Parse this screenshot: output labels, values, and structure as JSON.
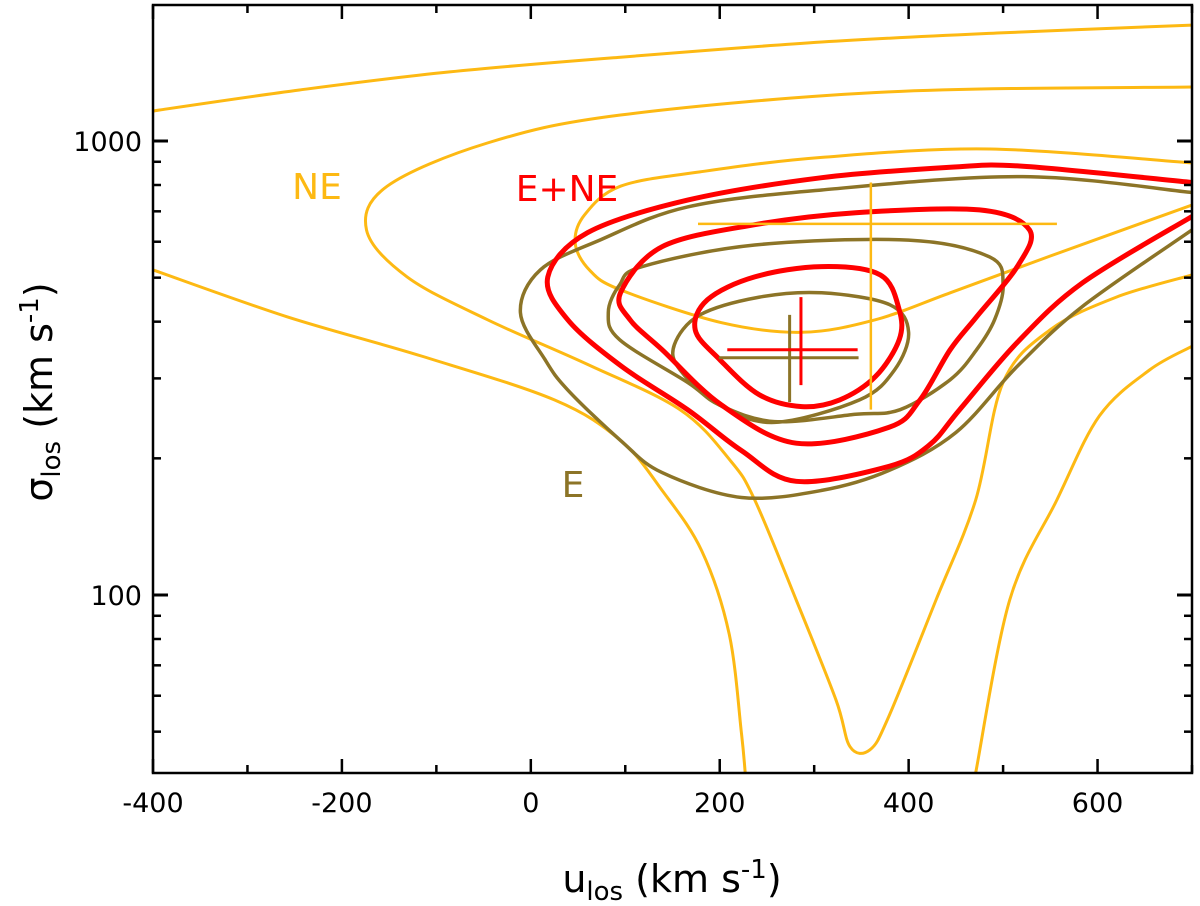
{
  "chart_data": {
    "type": "contour",
    "xlabel": {
      "symbol": "u",
      "subscript": "los",
      "unit": " (km s",
      "unit_sup": "-1",
      "close": ")"
    },
    "ylabel": {
      "symbol": "σ",
      "subscript": "los",
      "unit": " (km s",
      "unit_sup": "-1",
      "close": ")"
    },
    "xlim": [
      -400,
      700
    ],
    "ylim": [
      40.6,
      2000
    ],
    "yscale": "log",
    "x_ticks": [
      -400,
      -200,
      0,
      200,
      400,
      600
    ],
    "x_tick_labels": [
      "-400",
      "-200",
      "0",
      "200",
      "400",
      "600"
    ],
    "y_ticks": [
      100,
      1000
    ],
    "y_tick_labels": [
      "100",
      "1000"
    ],
    "grid": false,
    "series": [
      {
        "name": "NE",
        "color": "#FDB913",
        "contours": [
          {
            "closed": false,
            "points": [
              [
                -400,
                1160
              ],
              [
                -393,
                1170
              ],
              [
                -245,
                1295
              ],
              [
                -86,
                1420
              ],
              [
                95,
                1530
              ],
              [
                308,
                1652
              ],
              [
                497,
                1730
              ],
              [
                700,
                1800
              ]
            ]
          },
          {
            "closed": false,
            "points": [
              [
                700,
                1315
              ],
              [
                379,
                1283
              ],
              [
                95,
                1141
              ],
              [
                -46,
                990
              ],
              [
                -152,
                795
              ],
              [
                -174,
                637
              ],
              [
                -131,
                502
              ],
              [
                -46,
                404
              ],
              [
                60,
                322
              ],
              [
                158,
                256
              ],
              [
                211,
                198
              ],
              [
                237,
                162
              ],
              [
                281,
                97.5
              ],
              [
                323,
                58.8
              ],
              [
                338,
                46.3
              ],
              [
                359,
                45.6
              ],
              [
                379,
                54
              ],
              [
                429,
                97.5
              ],
              [
                471,
                162
              ],
              [
                500,
                294
              ],
              [
                550,
                384
              ],
              [
                620,
                453
              ],
              [
                700,
                507
              ]
            ]
          },
          {
            "closed": false,
            "points": [
              [
                -400,
                520
              ],
              [
                -258,
                410
              ],
              [
                -116,
                336
              ],
              [
                25,
                269
              ],
              [
                95,
                219
              ],
              [
                139,
                170
              ],
              [
                181,
                125
              ],
              [
                210,
                82
              ],
              [
                223,
                49.5
              ],
              [
                227,
                40.6
              ]
            ]
          },
          {
            "closed": false,
            "points": [
              [
                700,
                895
              ],
              [
                486,
                960
              ],
              [
                308,
                920
              ],
              [
                179,
                855
              ],
              [
                95,
                795
              ],
              [
                57,
                688
              ],
              [
                47,
                596
              ],
              [
                62,
                520
              ],
              [
                95,
                470
              ],
              [
                202,
                398
              ],
              [
                287,
                379
              ],
              [
                365,
                404
              ],
              [
                444,
                463
              ],
              [
                550,
                558
              ],
              [
                700,
                723
              ]
            ]
          },
          {
            "closed": false,
            "points": [
              [
                471,
                40.6
              ],
              [
                507,
                97.5
              ],
              [
                557,
                162
              ],
              [
                602,
                248
              ],
              [
                655,
                313
              ],
              [
                700,
                353
              ]
            ]
          }
        ],
        "error_bar": {
          "center": [
            360,
            657
          ],
          "u_range": [
            177,
            557
          ],
          "sigma_range": [
            256,
            810
          ]
        }
      },
      {
        "name": "E",
        "color": "#8C7427",
        "contours": [
          {
            "closed": false,
            "points": [
              [
                700,
                770
              ],
              [
                521,
                835
              ],
              [
                308,
                780
              ],
              [
                166,
                716
              ],
              [
                73,
                605
              ],
              [
                10,
                520
              ],
              [
                -11,
                419
              ],
              [
                15,
                330
              ],
              [
                39,
                283
              ],
              [
                95,
                219
              ],
              [
                139,
                186
              ],
              [
                223,
                164
              ],
              [
                308,
                170
              ],
              [
                379,
                188
              ],
              [
                450,
                228
              ],
              [
                515,
                319
              ],
              [
                584,
                432
              ],
              [
                700,
                637
              ]
            ]
          },
          {
            "closed": true,
            "points": [
              [
                118,
                529
              ],
              [
                237,
                590
              ],
              [
                400,
                605
              ],
              [
                486,
                555
              ],
              [
                500,
                482
              ],
              [
                491,
                404
              ],
              [
                472,
                347
              ],
              [
                444,
                298
              ],
              [
                391,
                256
              ],
              [
                344,
                250
              ],
              [
                258,
                241
              ],
              [
                200,
                262
              ],
              [
                166,
                294
              ],
              [
                94,
                365
              ],
              [
                82,
                419
              ],
              [
                94,
                482
              ]
            ]
          },
          {
            "closed": true,
            "points": [
              [
                308,
                463
              ],
              [
                380,
                436
              ],
              [
                400,
                379
              ],
              [
                385,
                313
              ],
              [
                348,
                269
              ],
              [
                258,
                240
              ],
              [
                200,
                262
              ],
              [
                158,
                313
              ],
              [
                152,
                356
              ],
              [
                179,
                414
              ],
              [
                242,
                453
              ]
            ]
          }
        ],
        "error_bar": {
          "center": [
            274,
            333
          ],
          "u_range": [
            199,
            347
          ],
          "sigma_range": [
            266,
            414
          ]
        }
      },
      {
        "name": "E+NE",
        "color": "#FF0000",
        "contours": [
          {
            "closed": false,
            "points": [
              [
                700,
                810
              ],
              [
                521,
                880
              ],
              [
                444,
                875
              ],
              [
                308,
                830
              ],
              [
                166,
                741
              ],
              [
                60,
                628
              ],
              [
                18,
                502
              ],
              [
                39,
                404
              ],
              [
                96,
                319
              ],
              [
                166,
                256
              ],
              [
                223,
                208
              ],
              [
                281,
                178
              ],
              [
                379,
                192
              ],
              [
                422,
                214
              ],
              [
                454,
                256
              ],
              [
                515,
                360
              ],
              [
                584,
                487
              ],
              [
                700,
                682
              ]
            ]
          },
          {
            "closed": true,
            "points": [
              [
                95,
                463
              ],
              [
                139,
                585
              ],
              [
                237,
                654
              ],
              [
                344,
                695
              ],
              [
                475,
                705
              ],
              [
                528,
                637
              ],
              [
                515,
                529
              ],
              [
                472,
                410
              ],
              [
                444,
                347
              ],
              [
                412,
                269
              ],
              [
                379,
                234
              ],
              [
                281,
                216
              ],
              [
                202,
                262
              ],
              [
                139,
                347
              ],
              [
                105,
                404
              ]
            ]
          },
          {
            "closed": true,
            "points": [
              [
                308,
                529
              ],
              [
                370,
                507
              ],
              [
                390,
                425
              ],
              [
                390,
                365
              ],
              [
                365,
                303
              ],
              [
                327,
                269
              ],
              [
                287,
                260
              ],
              [
                242,
                276
              ],
              [
                200,
                330
              ],
              [
                174,
                384
              ],
              [
                187,
                447
              ],
              [
                237,
                502
              ]
            ]
          }
        ],
        "error_bar": {
          "center": [
            286,
            347
          ],
          "u_range": [
            208,
            346
          ],
          "sigma_range": [
            290,
            453
          ]
        }
      }
    ],
    "annotations": [
      {
        "text": "NE",
        "color": "#FDB913"
      },
      {
        "text": "E+NE",
        "color": "#FF0000"
      },
      {
        "text": "E",
        "color": "#8C7427"
      }
    ]
  }
}
